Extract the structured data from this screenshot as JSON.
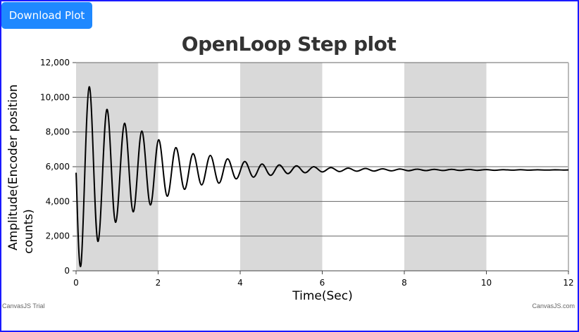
{
  "toolbar": {
    "download_label": "Download Plot"
  },
  "credits": {
    "left": "CanvasJS Trial",
    "right": "CanvasJS.com"
  },
  "colors": {
    "band": "#d9d9d9",
    "line": "#000000",
    "grid": "#666666",
    "button": "#1e88ff",
    "frame": "#1a1aff"
  },
  "chart_data": {
    "type": "line",
    "title": "OpenLoop Step plot",
    "xlabel": "Time(Sec)",
    "ylabel_lines": [
      "Amplitude(Encoder position",
      "counts)"
    ],
    "xlim": [
      0,
      12
    ],
    "ylim": [
      0,
      12000
    ],
    "x_ticks": [
      "0",
      "2",
      "4",
      "6",
      "8",
      "10",
      "12"
    ],
    "y_ticks": [
      "0",
      "2,000",
      "4,000",
      "6,000",
      "8,000",
      "10,000",
      "12,000"
    ],
    "x_tick_values": [
      0,
      2,
      4,
      6,
      8,
      10,
      12
    ],
    "y_tick_values": [
      0,
      2000,
      4000,
      6000,
      8000,
      10000,
      12000
    ],
    "bands": [
      [
        0,
        2
      ],
      [
        4,
        6
      ],
      [
        8,
        10
      ]
    ],
    "grid": "horizontal",
    "series": [
      {
        "x": [
          0,
          0.12,
          0.32,
          0.53,
          0.75,
          0.96,
          1.18,
          1.39,
          1.6,
          1.81,
          2.01,
          2.22,
          2.43,
          2.64,
          2.85,
          3.06,
          3.27,
          3.48,
          3.69,
          3.9,
          4.11,
          4.32,
          4.53,
          4.74,
          4.95,
          5.16,
          5.37,
          5.58,
          5.79,
          6,
          6.21,
          6.42,
          6.63,
          6.84,
          7.05,
          7.26,
          7.47,
          7.68,
          7.89,
          8.1,
          8.31,
          8.52,
          8.73,
          8.94,
          9.15,
          9.36,
          9.57,
          9.78,
          9.99,
          10.2,
          10.41,
          10.62,
          10.83,
          11.04,
          11.25,
          11.46,
          11.67,
          11.88,
          12
        ],
        "y": [
          5650,
          350,
          10600,
          1700,
          9300,
          2800,
          8500,
          3400,
          8050,
          3800,
          7550,
          4300,
          7100,
          4700,
          6750,
          4950,
          6650,
          5050,
          6450,
          5300,
          6300,
          5400,
          6150,
          5500,
          6100,
          5600,
          6050,
          5650,
          6000,
          5700,
          5950,
          5720,
          5920,
          5740,
          5900,
          5750,
          5880,
          5760,
          5870,
          5770,
          5860,
          5775,
          5850,
          5780,
          5845,
          5785,
          5840,
          5790,
          5835,
          5795,
          5830,
          5800,
          5825,
          5800,
          5822,
          5805,
          5820,
          5808,
          5815
        ]
      }
    ]
  }
}
